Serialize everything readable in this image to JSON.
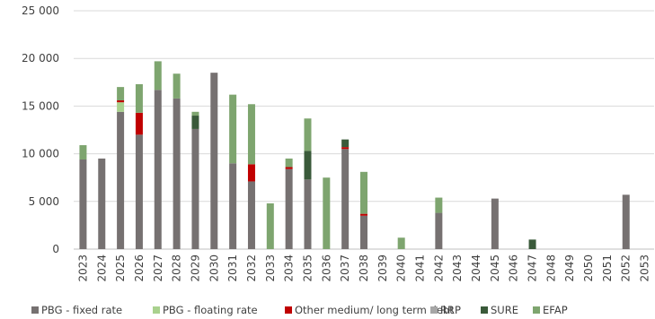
{
  "chart_data": {
    "type": "bar",
    "stacked": true,
    "title": "",
    "xlabel": "",
    "ylabel": "",
    "ylim": [
      0,
      25000
    ],
    "y_ticks": [
      "0",
      "5 000",
      "10 000",
      "15 000",
      "20 000",
      "25 000"
    ],
    "y_tick_values": [
      0,
      5000,
      10000,
      15000,
      20000,
      25000
    ],
    "grid": "horizontal",
    "legend_position": "bottom",
    "categories": [
      "2023",
      "2024",
      "2025",
      "2026",
      "2027",
      "2028",
      "2029",
      "2030",
      "2031",
      "2032",
      "2033",
      "2034",
      "2035",
      "2036",
      "2037",
      "2038",
      "2039",
      "2040",
      "2041",
      "2042",
      "2043",
      "2044",
      "2045",
      "2046",
      "2047",
      "2048",
      "2049",
      "2050",
      "2051",
      "2052",
      "2053"
    ],
    "series": [
      {
        "name": "PBG - fixed rate",
        "color": "#767171",
        "values": [
          9400,
          9500,
          14400,
          12000,
          16700,
          15800,
          12600,
          18500,
          9000,
          7100,
          0,
          8400,
          7300,
          0,
          10500,
          3500,
          0,
          0,
          0,
          3800,
          0,
          0,
          5300,
          0,
          0,
          0,
          0,
          0,
          0,
          5700,
          0
        ]
      },
      {
        "name": "PBG - floating rate",
        "color": "#a9d18e",
        "values": [
          0,
          0,
          1000,
          0,
          0,
          0,
          0,
          0,
          0,
          0,
          0,
          0,
          0,
          0,
          0,
          0,
          0,
          0,
          0,
          0,
          0,
          0,
          0,
          0,
          0,
          0,
          0,
          0,
          0,
          0,
          0
        ]
      },
      {
        "name": "Other medium/ long term debt",
        "color": "#c00000",
        "values": [
          0,
          0,
          200,
          2300,
          0,
          0,
          0,
          0,
          0,
          1800,
          0,
          200,
          0,
          0,
          200,
          200,
          0,
          0,
          0,
          0,
          0,
          0,
          0,
          0,
          0,
          0,
          0,
          0,
          0,
          0,
          0
        ]
      },
      {
        "name": "RRP",
        "color": "#a6a6a6",
        "values": [
          0,
          0,
          0,
          0,
          0,
          0,
          0,
          0,
          0,
          0,
          0,
          0,
          0,
          0,
          0,
          0,
          0,
          0,
          0,
          0,
          0,
          0,
          0,
          0,
          0,
          0,
          0,
          0,
          0,
          0,
          0
        ]
      },
      {
        "name": "SURE",
        "color": "#3a5a3a",
        "values": [
          0,
          0,
          0,
          0,
          0,
          0,
          1400,
          0,
          0,
          0,
          0,
          0,
          3000,
          0,
          800,
          0,
          0,
          0,
          0,
          0,
          0,
          0,
          0,
          0,
          1000,
          0,
          0,
          0,
          0,
          0,
          0
        ]
      },
      {
        "name": "EFAP",
        "color": "#7ea56f",
        "values": [
          1500,
          0,
          1400,
          3000,
          3000,
          2600,
          400,
          0,
          7200,
          6300,
          4800,
          900,
          3400,
          7500,
          0,
          4400,
          0,
          1200,
          0,
          1600,
          0,
          0,
          0,
          0,
          0,
          0,
          0,
          0,
          0,
          0,
          0
        ]
      }
    ]
  }
}
